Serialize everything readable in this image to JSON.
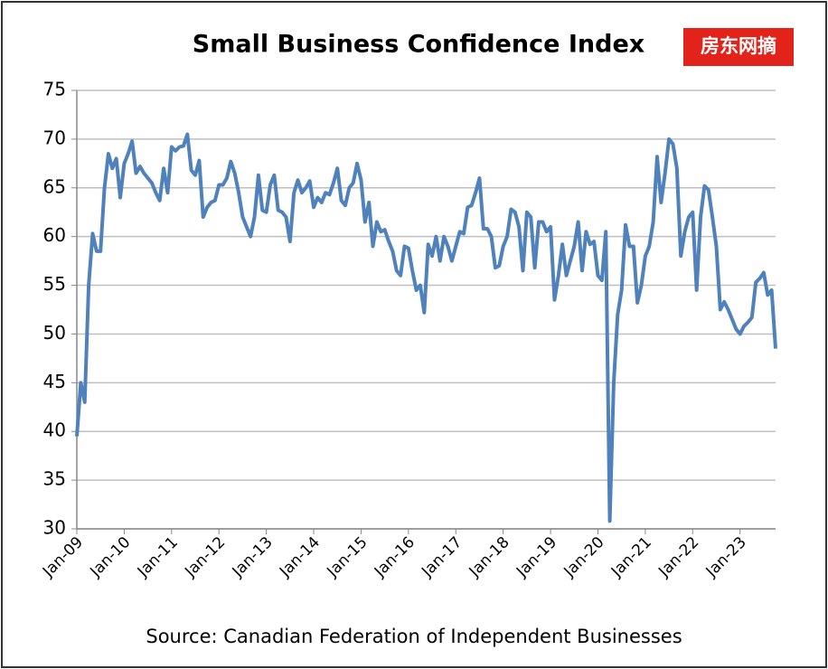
{
  "chart_data": {
    "type": "line",
    "title": "Small Business Confidence Index",
    "source": "Source: Canadian Federation of Independent Businesses",
    "watermark": "房东网摘",
    "categories": [
      "Jan-09",
      null,
      null,
      null,
      null,
      null,
      null,
      null,
      null,
      null,
      null,
      null,
      "Jan-10",
      null,
      null,
      null,
      null,
      null,
      null,
      null,
      null,
      null,
      null,
      null,
      "Jan-11",
      null,
      null,
      null,
      null,
      null,
      null,
      null,
      null,
      null,
      null,
      null,
      "Jan-12",
      null,
      null,
      null,
      null,
      null,
      null,
      null,
      null,
      null,
      null,
      null,
      "Jan-13",
      null,
      null,
      null,
      null,
      null,
      null,
      null,
      null,
      null,
      null,
      null,
      "Jan-14",
      null,
      null,
      null,
      null,
      null,
      null,
      null,
      null,
      null,
      null,
      null,
      "Jan-15",
      null,
      null,
      null,
      null,
      null,
      null,
      null,
      null,
      null,
      null,
      null,
      "Jan-16",
      null,
      null,
      null,
      null,
      null,
      null,
      null,
      null,
      null,
      null,
      null,
      "Jan-17",
      null,
      null,
      null,
      null,
      null,
      null,
      null,
      null,
      null,
      null,
      null,
      "Jan-18",
      null,
      null,
      null,
      null,
      null,
      null,
      null,
      null,
      null,
      null,
      null,
      "Jan-19",
      null,
      null,
      null,
      null,
      null,
      null,
      null,
      null,
      null,
      null,
      null,
      "Jan-20",
      null,
      null,
      null,
      null,
      null,
      null,
      null,
      null,
      null,
      null,
      null,
      "Jan-21",
      null,
      null,
      null,
      null,
      null,
      null,
      null,
      null,
      null,
      null,
      null,
      "Jan-22",
      null,
      null,
      null,
      null,
      null,
      null,
      null,
      null,
      null,
      null,
      null,
      "Jan-23",
      null,
      null,
      null,
      null,
      null,
      null,
      null,
      null,
      null
    ],
    "series": [
      {
        "name": "Small Business Confidence Index",
        "color": "#4f81bd",
        "values": [
          39.5,
          45,
          43,
          55,
          60.3,
          58.5,
          58.5,
          65,
          68.5,
          67,
          68,
          64,
          67.5,
          68.5,
          69.8,
          66.5,
          67.2,
          66.5,
          66,
          65.5,
          64.5,
          63.7,
          67,
          64.5,
          69.2,
          68.8,
          69.2,
          69.3,
          70.5,
          66.8,
          66.3,
          67.8,
          62,
          63,
          63.5,
          63.7,
          65.3,
          65.3,
          66,
          67.7,
          66.5,
          64.5,
          62,
          61,
          60,
          62,
          66.3,
          62.7,
          62.5,
          65.3,
          66.3,
          62.7,
          62.5,
          62,
          59.5,
          64.5,
          65.8,
          64.5,
          65,
          65.7,
          63,
          64,
          63.5,
          64.5,
          64.3,
          65.5,
          67,
          63.7,
          63.2,
          65,
          65.5,
          67.5,
          65.8,
          61.5,
          63.5,
          59,
          61.5,
          60.5,
          60.7,
          59.5,
          58.5,
          56.5,
          56,
          59,
          58.8,
          56.5,
          54.5,
          55,
          52.2,
          59.2,
          58,
          60,
          57.5,
          60,
          59,
          57.5,
          59,
          60.5,
          60.3,
          63,
          63.2,
          64.5,
          66,
          60.8,
          60.8,
          60,
          56.8,
          57,
          59,
          60,
          62.8,
          62.5,
          61,
          56.5,
          62.5,
          62,
          56.8,
          61.5,
          61.5,
          60.5,
          61,
          53.5,
          56,
          59.2,
          56,
          57.5,
          59,
          61.5,
          56.5,
          60.5,
          59.2,
          59.5,
          56,
          55.5,
          60.5,
          30.8,
          45,
          52,
          54.5,
          61.2,
          59,
          59,
          53.2,
          55,
          58,
          59,
          61.5,
          68.2,
          63.5,
          66.5,
          70,
          69.5,
          67,
          58,
          60.5,
          62,
          62.5,
          54.5,
          62,
          65.2,
          64.8,
          62,
          59,
          52.5,
          53.3,
          52.5,
          51.5,
          50.5,
          50,
          50.8,
          51.2,
          51.7,
          55.3,
          55.7,
          56.3,
          54,
          54.5,
          48.5
        ]
      }
    ],
    "ylim": [
      30,
      75
    ],
    "yticks": [
      30,
      35,
      40,
      45,
      50,
      55,
      60,
      65,
      70,
      75
    ],
    "grid": true
  }
}
